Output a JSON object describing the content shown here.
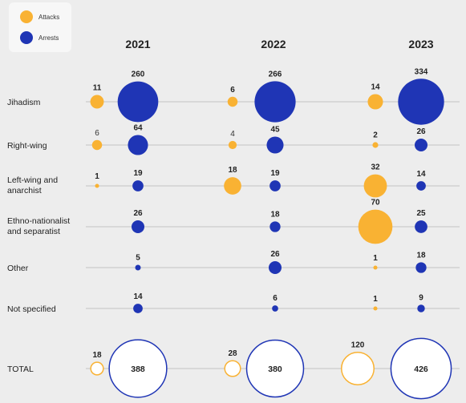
{
  "chart_data": {
    "type": "bubble-matrix",
    "legend": [
      {
        "name": "Attacks",
        "color": "#f9b233"
      },
      {
        "name": "Arrests",
        "color": "#1f35b5"
      }
    ],
    "years": [
      "2021",
      "2022",
      "2023"
    ],
    "categories": [
      {
        "label": [
          "Jihadism"
        ],
        "attacks": [
          11,
          6,
          14
        ],
        "arrests": [
          260,
          266,
          334
        ]
      },
      {
        "label": [
          "Right-wing"
        ],
        "attacks": [
          6,
          4,
          2
        ],
        "arrests": [
          64,
          45,
          26
        ]
      },
      {
        "label": [
          "Left-wing and",
          "anarchist"
        ],
        "attacks": [
          1,
          18,
          32
        ],
        "arrests": [
          19,
          19,
          14
        ]
      },
      {
        "label": [
          "Ethno-nationalist",
          "and separatist"
        ],
        "attacks": [
          null,
          null,
          70
        ],
        "arrests": [
          26,
          18,
          25
        ]
      },
      {
        "label": [
          "Other"
        ],
        "attacks": [
          null,
          null,
          1
        ],
        "arrests": [
          5,
          26,
          18
        ]
      },
      {
        "label": [
          "Not specified"
        ],
        "attacks": [
          null,
          null,
          1
        ],
        "arrests": [
          14,
          6,
          9
        ]
      }
    ],
    "total": {
      "label": "TOTAL",
      "attacks": [
        18,
        28,
        120
      ],
      "arrests": [
        388,
        380,
        426
      ]
    }
  }
}
